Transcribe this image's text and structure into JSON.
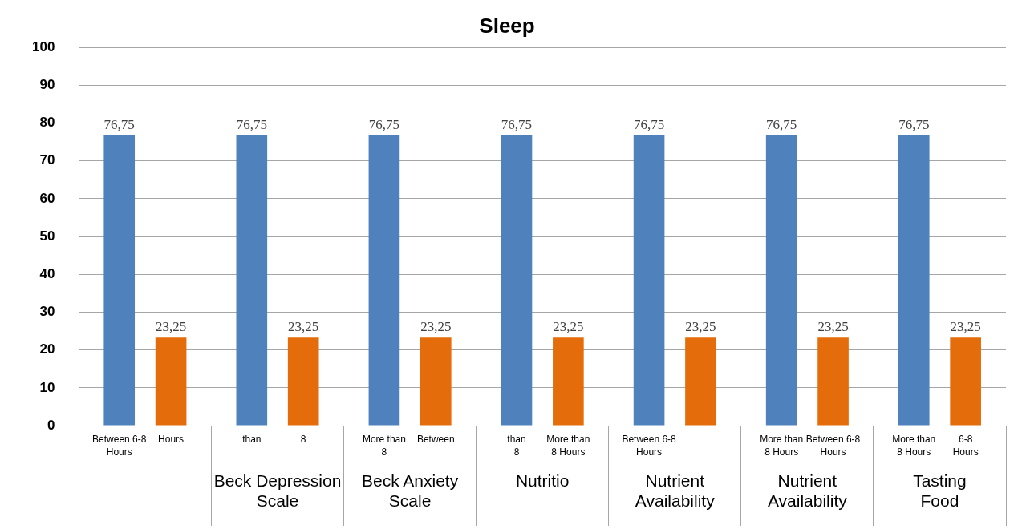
{
  "chart_data": {
    "type": "bar",
    "title": "Sleep",
    "categories": [
      null,
      "Beck Depression Scale",
      "Beck Anxiety Scale",
      "Nutritio",
      "Nutrient Availability",
      "Nutrient Availability",
      "Tasting Food"
    ],
    "series": [
      {
        "color": "#4f81bd",
        "values": [
          76.75,
          76.75,
          76.75,
          76.75,
          76.75,
          76.75,
          76.75
        ],
        "value_labels": [
          "76,75",
          "76,75",
          "76,75",
          "76,75",
          "76,75",
          "76,75",
          "76,75"
        ]
      },
      {
        "color": "#e46c0a",
        "values": [
          23.25,
          23.25,
          23.25,
          23.25,
          23.25,
          23.25,
          23.25
        ],
        "value_labels": [
          "23,25",
          "23,25",
          "23,25",
          "23,25",
          "23,25",
          "23,25",
          "23,25"
        ]
      }
    ],
    "annotations": [
      "Between 6-8 Hours",
      "Hours",
      "than",
      "8",
      "More than 8",
      "Between",
      "than 8",
      "More than 8 Hours",
      "Between 6-8 Hours",
      null,
      "More than 8 Hours",
      "Between 6-8 Hours",
      "More than 8 Hours",
      "6-8 Hours"
    ],
    "ylim": [
      0,
      100
    ],
    "yticks": [
      0,
      10,
      20,
      30,
      40,
      50,
      60,
      70,
      80,
      90,
      100
    ],
    "grid": "y",
    "legend": false
  }
}
